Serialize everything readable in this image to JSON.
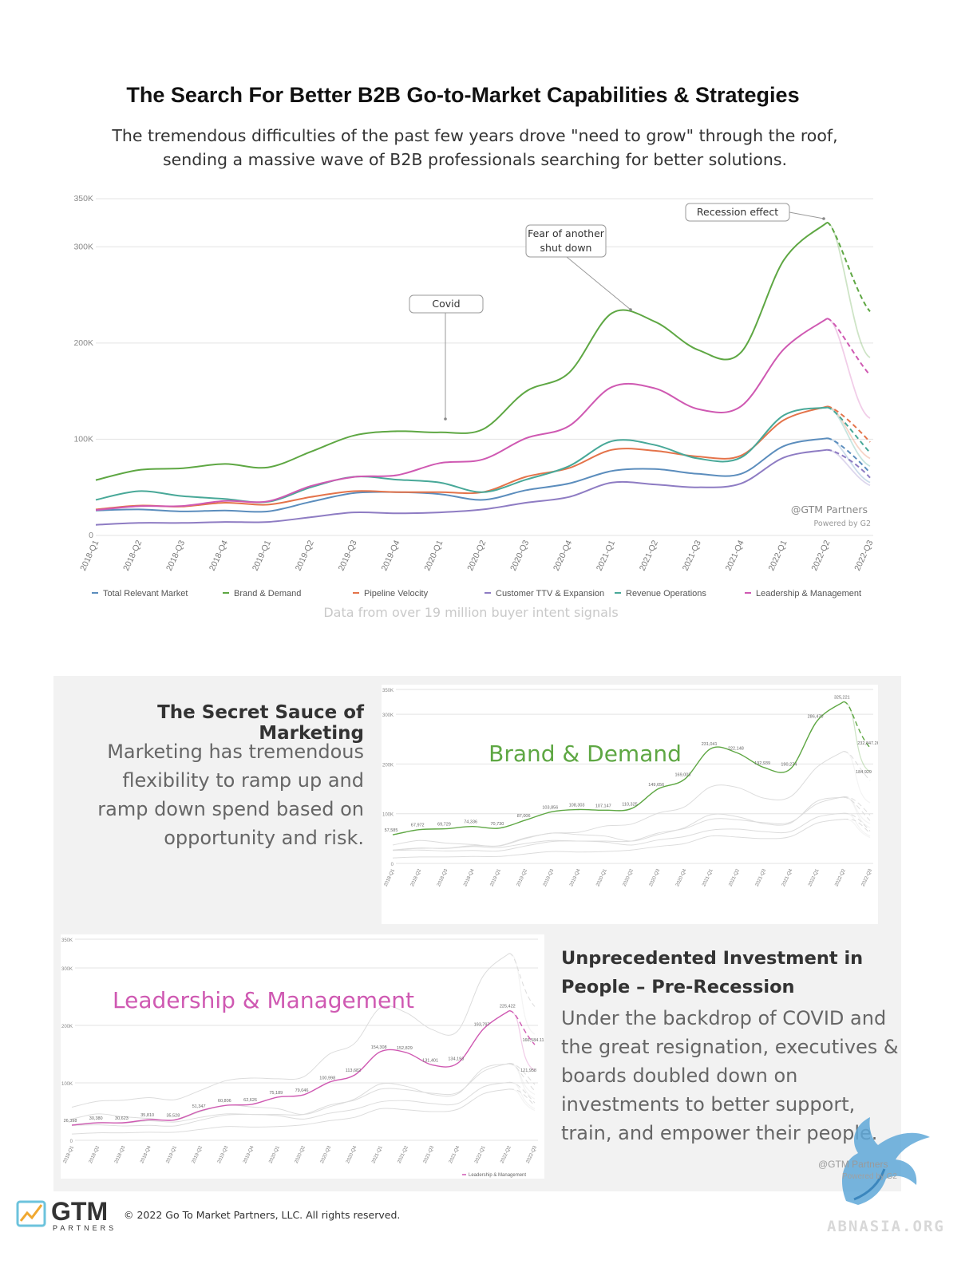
{
  "title": "The Search For Better B2B Go-to-Market Capabilities & Strategies",
  "subtitle_line1": "The tremendous difficulties of the past few years drove \"need to grow\" through the roof,",
  "subtitle_line2": "sending a massive wave of B2B professionals searching for better solutions.",
  "footnote": "Data from over 19 million buyer intent signals",
  "watermark": "@GTM Partners",
  "watermark_sub": "Powered by G2",
  "chart_data": [
    {
      "type": "line",
      "x": [
        "2018-Q1",
        "2018-Q2",
        "2018-Q3",
        "2018-Q4",
        "2019-Q1",
        "2019-Q2",
        "2019-Q3",
        "2019-Q4",
        "2020-Q1",
        "2020-Q2",
        "2020-Q3",
        "2020-Q4",
        "2021-Q1",
        "2021-Q2",
        "2021-Q3",
        "2021-Q4",
        "2022-Q1",
        "2022-Q2",
        "2022-Q3"
      ],
      "yticks": [
        0,
        100000,
        200000,
        300000,
        350000
      ],
      "ytick_labels": [
        "0",
        "100K",
        "200K",
        "300K",
        "350K"
      ],
      "ylim": [
        0,
        350000
      ],
      "grid": true,
      "legend_position": "bottom",
      "forecast_from": "2022-Q2",
      "series": [
        {
          "name": "Total Relevant Market",
          "color": "#5b8dbd",
          "values": [
            26000,
            27000,
            25000,
            26000,
            25000,
            35000,
            44000,
            45000,
            43000,
            37000,
            47000,
            54000,
            67000,
            69000,
            64000,
            64000,
            93000,
            101000,
            65000
          ],
          "forecast_alt": 55000
        },
        {
          "name": "Brand & Demand",
          "color": "#5ea743",
          "values": [
            57585,
            67972,
            69729,
            74336,
            70730,
            87006,
            103856,
            108303,
            107147,
            110325,
            149656,
            169003,
            231041,
            222148,
            192939,
            190274,
            286470,
            325221,
            232847
          ],
          "forecast_alt": 184929
        },
        {
          "name": "Pipeline Velocity",
          "color": "#e4734a",
          "values": [
            27000,
            31000,
            30000,
            34000,
            32000,
            40000,
            46000,
            45000,
            45000,
            45000,
            61000,
            70000,
            89000,
            88000,
            82000,
            83000,
            120000,
            134000,
            97000
          ],
          "forecast_alt": 80000
        },
        {
          "name": "Customer TTV & Expansion",
          "color": "#8e7cc3",
          "values": [
            11000,
            13000,
            13000,
            14000,
            14000,
            19000,
            24000,
            23000,
            24000,
            27000,
            34000,
            40000,
            55000,
            53000,
            50000,
            54000,
            81000,
            89000,
            60000
          ],
          "forecast_alt": 52000
        },
        {
          "name": "Revenue Operations",
          "color": "#48a898",
          "values": [
            37000,
            46000,
            41000,
            38000,
            35000,
            50000,
            61000,
            58000,
            55000,
            45000,
            58000,
            72000,
            98000,
            94000,
            80000,
            81000,
            125000,
            133000,
            86000
          ],
          "forecast_alt": 72000
        },
        {
          "name": "Leadership & Management",
          "color": "#cf59b2",
          "values": [
            26398,
            30380,
            30623,
            35810,
            35528,
            51347,
            60806,
            62626,
            75189,
            79046,
            100998,
            113682,
            154308,
            152829,
            131401,
            134193,
            193797,
            225422,
            166584
          ],
          "forecast_alt": 121958
        }
      ],
      "annotations": [
        {
          "text": "Covid",
          "x": "2020-Q1"
        },
        {
          "text": "Fear of another shut down",
          "x": "2021-Q1"
        },
        {
          "text": "Recession effect",
          "x": "2022-Q2"
        }
      ]
    },
    {
      "type": "line",
      "title": "Brand & Demand",
      "highlight": "Brand & Demand",
      "data_labels": [
        "57,585",
        "67,972",
        "69,729",
        "74,336",
        "70,730",
        "87,006",
        "103,856",
        "108,303",
        "107,147",
        "110,325",
        "149,656",
        "169,003",
        "231,041",
        "222,148",
        "192,939",
        "190,274",
        "286,470",
        "325,221",
        "232,847.26",
        "184,929"
      ]
    },
    {
      "type": "line",
      "title": "Leadership & Management",
      "highlight": "Leadership & Management",
      "legend_entry": "Leadership & Management",
      "data_labels": [
        "26,398",
        "30,380",
        "30,623",
        "35,810",
        "35,528",
        "51,347",
        "60,806",
        "62,626",
        "75,189",
        "79,046",
        "100,998",
        "113,682",
        "154,308",
        "152,829",
        "131,401",
        "134,193",
        "193,797",
        "225,422",
        "166,584.11",
        "121,958"
      ]
    }
  ],
  "secret": {
    "title": "The Secret Sauce of Marketing",
    "lines": [
      "Marketing has tremendous",
      "flexibility to ramp up and",
      "ramp down spend based on",
      "opportunity and risk."
    ]
  },
  "investment": {
    "title_line1": "Unprecedented Investment in",
    "title_line2": "People – Pre-Recession",
    "lines": [
      "Under the backdrop of COVID and",
      "the great resignation, executives &",
      "boards doubled down on",
      "investments to better support,",
      "train, and empower their people."
    ]
  },
  "logo": {
    "name": "GTM",
    "tagline": "PARTNERS"
  },
  "copyright": "© 2022 Go To Market Partners, LLC. All rights reserved.",
  "site": "ABNASIA.ORG",
  "colors": {
    "grid": "#e3e3e3",
    "faded": "#dcdcdc",
    "panel": "#f2f2f2"
  }
}
